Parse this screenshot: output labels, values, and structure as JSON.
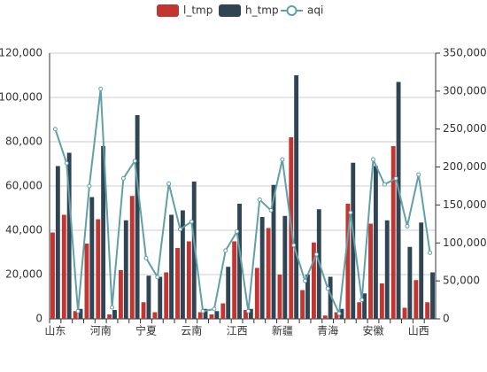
{
  "chart_data": {
    "type": "bar",
    "categories": [
      "山东",
      null,
      null,
      null,
      "河南",
      null,
      null,
      null,
      "宁夏",
      null,
      null,
      null,
      "云南",
      null,
      null,
      null,
      "江西",
      null,
      null,
      null,
      "新疆",
      null,
      null,
      null,
      "青海",
      null,
      null,
      null,
      "安徽",
      null,
      null,
      null,
      "山西",
      null
    ],
    "series": [
      {
        "name": "l_tmp",
        "color": "#c23531",
        "values": [
          39000,
          47000,
          3500,
          34000,
          45000,
          2000,
          22000,
          55500,
          7500,
          3000,
          21000,
          32000,
          35000,
          3000,
          2000,
          7000,
          35000,
          4000,
          23000,
          41000,
          20000,
          82000,
          13000,
          34500,
          1500,
          3000,
          52000,
          7500,
          43000,
          16000,
          78000,
          5000,
          17500,
          7500
        ]
      },
      {
        "name": "h_tmp",
        "color": "#2f4554",
        "values": [
          69000,
          75000,
          4500,
          55000,
          78000,
          4000,
          44500,
          92000,
          19500,
          19000,
          47000,
          49000,
          62000,
          4500,
          3500,
          23500,
          52000,
          4500,
          46000,
          60500,
          46500,
          110000,
          20000,
          49500,
          19000,
          4500,
          70500,
          11500,
          69000,
          44500,
          107000,
          32500,
          43500,
          21000
        ]
      },
      {
        "name": "aqi",
        "color": "#61a0a8",
        "type": "line",
        "axis": "y2",
        "values": [
          250000,
          205000,
          10000,
          175000,
          303000,
          15000,
          185000,
          208000,
          80000,
          55000,
          178000,
          118000,
          128000,
          10000,
          13000,
          90000,
          115000,
          10000,
          157000,
          143000,
          210000,
          97000,
          50000,
          85000,
          40000,
          7000,
          140000,
          25000,
          210000,
          177000,
          185000,
          122000,
          190000,
          87000
        ]
      }
    ],
    "ylim": [
      0,
      120000
    ],
    "yticks": [
      0,
      {
        "value": 20000,
        "label": "20,000"
      },
      {
        "value": 40000,
        "label": "40,000"
      },
      {
        "value": 60000,
        "label": "60,000"
      },
      {
        "value": 80000,
        "label": "80,000"
      },
      {
        "value": 100000,
        "label": "100,000"
      },
      {
        "value": 120000,
        "label": "120,000"
      }
    ],
    "y2lim": [
      0,
      350000
    ],
    "y2ticks": [
      0,
      {
        "value": 50000,
        "label": "50,000"
      },
      {
        "value": 100000,
        "label": "100,000"
      },
      {
        "value": 150000,
        "label": "150,000"
      },
      {
        "value": 200000,
        "label": "200,000"
      },
      {
        "value": 250000,
        "label": "250,000"
      },
      {
        "value": 300000,
        "label": "300,000"
      },
      {
        "value": 350000,
        "label": "350,000"
      }
    ],
    "grid": true,
    "legend": "top"
  }
}
